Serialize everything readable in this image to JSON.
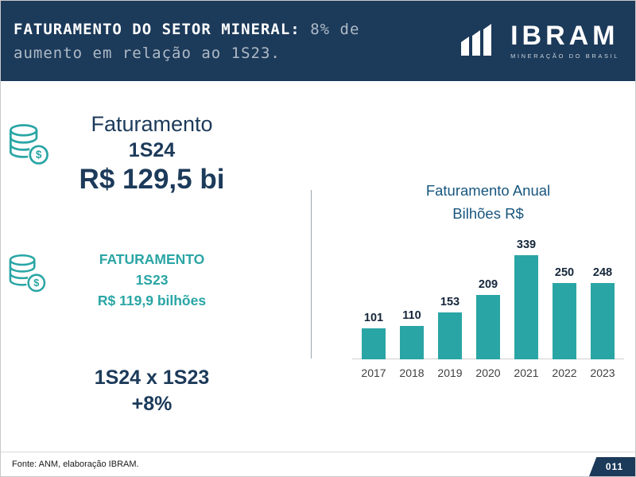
{
  "header": {
    "title": "FATURAMENTO DO SETOR MINERAL:",
    "subtitle": "8% de aumento em relação ao 1S23.",
    "logo": {
      "name": "IBRAM",
      "tagline": "MINERAÇÃO DO BRASIL"
    }
  },
  "stats": {
    "current": {
      "label": "Faturamento",
      "period": "1S24",
      "value": "R$ 129,5 bi"
    },
    "previous": {
      "label": "FATURAMENTO",
      "period": "1S23",
      "value": "R$ 119,9 bilhões"
    },
    "comparison": {
      "label": "1S24 x 1S23",
      "value": "+8%"
    }
  },
  "chart_data": {
    "type": "bar",
    "title": "Faturamento Anual",
    "subtitle": "Bilhões R$",
    "categories": [
      "2017",
      "2018",
      "2019",
      "2020",
      "2021",
      "2022",
      "2023"
    ],
    "values": [
      101,
      110,
      153,
      209,
      339,
      250,
      248
    ],
    "xlabel": "",
    "ylabel": "Bilhões R$",
    "ylim": [
      0,
      350
    ],
    "grid": false,
    "legend": false,
    "bar_color": "#2aa5a5"
  },
  "footer": {
    "source": "Fonte: ANM, elaboração IBRAM.",
    "page_number": "011"
  },
  "colors": {
    "navy": "#1c3a5a",
    "teal": "#2aa5a5",
    "header_muted": "#aebac6",
    "chart_title": "#18567e"
  }
}
